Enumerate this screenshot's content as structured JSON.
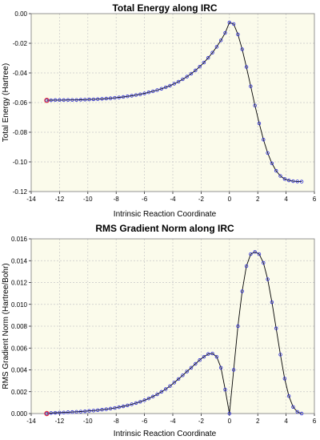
{
  "chart_data": [
    {
      "type": "line",
      "title": "Total Energy along IRC",
      "xlabel": "Intrinsic Reaction Coordinate",
      "ylabel": "Total Energy (Hartree)",
      "xlim": [
        -14,
        6
      ],
      "ylim": [
        -0.12,
        0.0
      ],
      "xticks": [
        "-14",
        "-12",
        "-10",
        "-8",
        "-6",
        "-4",
        "-2",
        "0",
        "2",
        "4",
        "6"
      ],
      "yticks": [
        "0.00",
        "-0.02",
        "-0.04",
        "-0.06",
        "-0.08",
        "-0.10",
        "-0.12"
      ],
      "grid": true,
      "plot_background": "#fbfbeb",
      "line_color": "#000000",
      "marker_color": "#2c2cd6",
      "highlight_color": "#e8303a",
      "highlight_point": [
        -12.9,
        -0.0585
      ],
      "series": [
        {
          "x": [
            -12.9,
            -12.6,
            -12.3,
            -12.0,
            -11.7,
            -11.4,
            -11.1,
            -10.8,
            -10.5,
            -10.2,
            -9.9,
            -9.6,
            -9.3,
            -9.0,
            -8.7,
            -8.4,
            -8.1,
            -7.8,
            -7.5,
            -7.2,
            -6.9,
            -6.6,
            -6.3,
            -6.0,
            -5.7,
            -5.4,
            -5.1,
            -4.8,
            -4.5,
            -4.2,
            -3.9,
            -3.6,
            -3.3,
            -3.0,
            -2.7,
            -2.4,
            -2.1,
            -1.8,
            -1.5,
            -1.2,
            -0.9,
            -0.6,
            -0.3,
            0.0,
            0.3,
            0.6,
            0.9,
            1.2,
            1.5,
            1.8,
            2.1,
            2.4,
            2.7,
            3.0,
            3.3,
            3.6,
            3.9,
            4.2,
            4.5,
            4.8,
            5.1
          ],
          "y": [
            -0.0585,
            -0.0584,
            -0.0583,
            -0.0583,
            -0.0583,
            -0.0582,
            -0.0582,
            -0.0582,
            -0.0581,
            -0.058,
            -0.0579,
            -0.0578,
            -0.0577,
            -0.0575,
            -0.0573,
            -0.0571,
            -0.0568,
            -0.0565,
            -0.0562,
            -0.0558,
            -0.0554,
            -0.0549,
            -0.0544,
            -0.0538,
            -0.0531,
            -0.0524,
            -0.0516,
            -0.0507,
            -0.0497,
            -0.0486,
            -0.0473,
            -0.0459,
            -0.0443,
            -0.0425,
            -0.0405,
            -0.0383,
            -0.0358,
            -0.033,
            -0.0298,
            -0.0263,
            -0.0224,
            -0.018,
            -0.013,
            -0.006,
            -0.007,
            -0.014,
            -0.024,
            -0.036,
            -0.049,
            -0.062,
            -0.074,
            -0.085,
            -0.094,
            -0.101,
            -0.106,
            -0.1095,
            -0.1115,
            -0.1125,
            -0.113,
            -0.1132,
            -0.1133
          ]
        }
      ]
    },
    {
      "type": "line",
      "title": "RMS Gradient Norm along IRC",
      "xlabel": "Intrinsic Reaction Coordinate",
      "ylabel": "RMS Gradient Norm (Hartree/Bohr)",
      "xlim": [
        -14,
        6
      ],
      "ylim": [
        0.0,
        0.016
      ],
      "xticks": [
        "-14",
        "-12",
        "-10",
        "-8",
        "-6",
        "-4",
        "-2",
        "0",
        "2",
        "4",
        "6"
      ],
      "yticks": [
        "0.016",
        "0.014",
        "0.012",
        "0.010",
        "0.008",
        "0.006",
        "0.004",
        "0.002",
        "0.000"
      ],
      "grid": true,
      "plot_background": "#fbfbeb",
      "line_color": "#000000",
      "marker_color": "#2c2cd6",
      "highlight_color": "#e8303a",
      "highlight_point": [
        -12.9,
        0.0
      ],
      "series": [
        {
          "x": [
            -12.9,
            -12.6,
            -12.3,
            -12.0,
            -11.7,
            -11.4,
            -11.1,
            -10.8,
            -10.5,
            -10.2,
            -9.9,
            -9.6,
            -9.3,
            -9.0,
            -8.7,
            -8.4,
            -8.1,
            -7.8,
            -7.5,
            -7.2,
            -6.9,
            -6.6,
            -6.3,
            -6.0,
            -5.7,
            -5.4,
            -5.1,
            -4.8,
            -4.5,
            -4.2,
            -3.9,
            -3.6,
            -3.3,
            -3.0,
            -2.7,
            -2.4,
            -2.1,
            -1.8,
            -1.5,
            -1.2,
            -0.9,
            -0.6,
            -0.3,
            0.0,
            0.3,
            0.6,
            0.9,
            1.2,
            1.5,
            1.8,
            2.1,
            2.4,
            2.7,
            3.0,
            3.3,
            3.6,
            3.9,
            4.2,
            4.5,
            4.8,
            5.1
          ],
          "y": [
            0.0,
            5e-05,
            7e-05,
            9e-05,
            0.0001,
            0.00012,
            0.00014,
            0.00016,
            0.00018,
            0.00021,
            0.00024,
            0.00027,
            0.00031,
            0.00035,
            0.0004,
            0.00045,
            0.00051,
            0.00058,
            0.00066,
            0.00075,
            0.00085,
            0.00096,
            0.00108,
            0.00122,
            0.00138,
            0.00156,
            0.00176,
            0.00199,
            0.00224,
            0.00252,
            0.00283,
            0.00316,
            0.0035,
            0.00385,
            0.0042,
            0.00455,
            0.0049,
            0.0052,
            0.00545,
            0.0055,
            0.0052,
            0.0042,
            0.0022,
            0.0,
            0.004,
            0.008,
            0.0112,
            0.0135,
            0.0146,
            0.0148,
            0.0146,
            0.0138,
            0.0123,
            0.0102,
            0.0078,
            0.0054,
            0.0032,
            0.0016,
            0.0006,
            0.00015,
            0.0
          ]
        }
      ]
    }
  ]
}
